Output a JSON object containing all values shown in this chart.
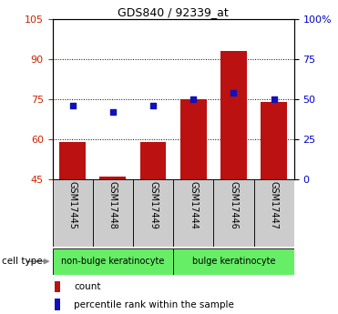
{
  "title": "GDS840 / 92339_at",
  "samples": [
    "GSM17445",
    "GSM17448",
    "GSM17449",
    "GSM17444",
    "GSM17446",
    "GSM17447"
  ],
  "bar_values": [
    59,
    46,
    59,
    75,
    93,
    74
  ],
  "percentile_values": [
    46,
    42,
    46,
    50,
    54,
    50
  ],
  "bar_bottom": 45,
  "ylim_left": [
    45,
    105
  ],
  "ylim_right": [
    0,
    100
  ],
  "yticks_left": [
    45,
    60,
    75,
    90,
    105
  ],
  "yticks_right": [
    0,
    25,
    50,
    75,
    100
  ],
  "ytick_labels_right": [
    "0",
    "25",
    "50",
    "75",
    "100%"
  ],
  "bar_color": "#BB1111",
  "percentile_color": "#1111BB",
  "group1_label": "non-bulge keratinocyte",
  "group2_label": "bulge keratinocyte",
  "group_bg_color": "#66ee66",
  "sample_bg_color": "#cccccc",
  "label_count": "count",
  "label_percentile": "percentile rank within the sample",
  "cell_type_label": "cell type",
  "tick_label_color_left": "#CC2200",
  "tick_label_color_right": "#0000CC",
  "bar_width": 0.65,
  "title_fontsize": 9
}
